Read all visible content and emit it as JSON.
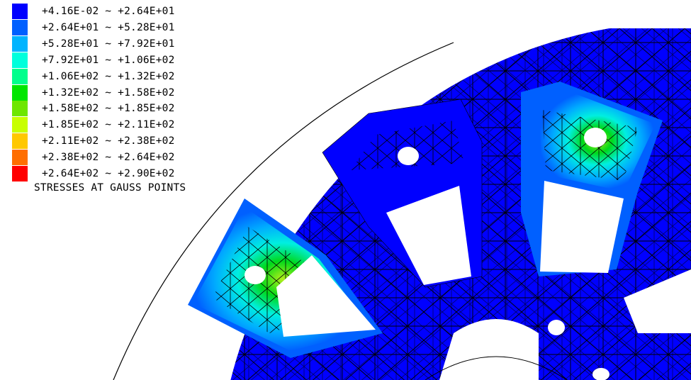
{
  "legend": {
    "entries": [
      {
        "min": "+4.16E-02",
        "sep": "~",
        "max": "+2.64E+01",
        "color": "#0000ff"
      },
      {
        "min": "+2.64E+01",
        "sep": "~",
        "max": "+5.28E+01",
        "color": "#0060ff"
      },
      {
        "min": "+5.28E+01",
        "sep": "~",
        "max": "+7.92E+01",
        "color": "#00b4ff"
      },
      {
        "min": "+7.92E+01",
        "sep": "~",
        "max": "+1.06E+02",
        "color": "#00ffdc"
      },
      {
        "min": "+1.06E+02",
        "sep": "~",
        "max": "+1.32E+02",
        "color": "#00ff8c"
      },
      {
        "min": "+1.32E+02",
        "sep": "~",
        "max": "+1.58E+02",
        "color": "#00e600"
      },
      {
        "min": "+1.58E+02",
        "sep": "~",
        "max": "+1.85E+02",
        "color": "#6ee600"
      },
      {
        "min": "+1.85E+02",
        "sep": "~",
        "max": "+2.11E+02",
        "color": "#c8ff00"
      },
      {
        "min": "+2.11E+02",
        "sep": "~",
        "max": "+2.38E+02",
        "color": "#ffc800"
      },
      {
        "min": "+2.38E+02",
        "sep": "~",
        "max": "+2.64E+02",
        "color": "#ff6e00"
      },
      {
        "min": "+2.64E+02",
        "sep": "~",
        "max": "+2.90E+02",
        "color": "#ff0000"
      }
    ],
    "caption": "STRESSES AT GAUSS POINTS"
  },
  "colors": {
    "mesh_base": "#0000ff",
    "mesh_lines": "#000000",
    "background": "#ffffff"
  }
}
